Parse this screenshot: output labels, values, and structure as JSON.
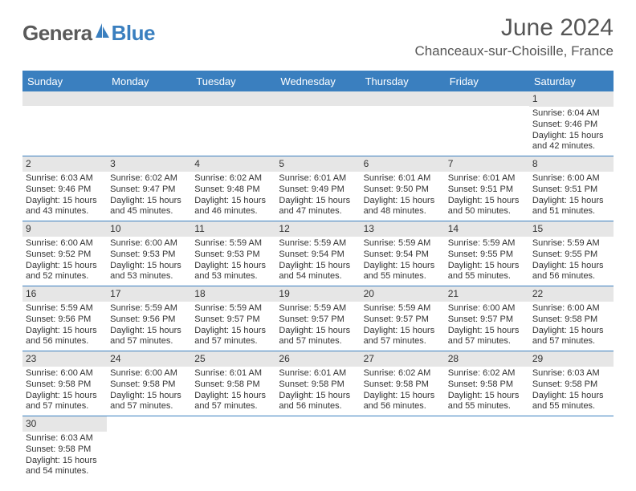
{
  "brand": {
    "text1": "Genera",
    "text2": "Blue",
    "icon_color": "#3a7fbf"
  },
  "header": {
    "month_title": "June 2024",
    "location": "Chanceaux-sur-Choisille, France"
  },
  "colors": {
    "header_bg": "#3a7fbf",
    "header_text": "#ffffff",
    "daynum_bg": "#e6e6e6",
    "border": "#3a7fbf",
    "body_text": "#333333",
    "logo_gray": "#5a5a5a"
  },
  "weekdays": [
    "Sunday",
    "Monday",
    "Tuesday",
    "Wednesday",
    "Thursday",
    "Friday",
    "Saturday"
  ],
  "weeks": [
    [
      {
        "day": "",
        "sunrise": "",
        "sunset": "",
        "daylight1": "",
        "daylight2": ""
      },
      {
        "day": "",
        "sunrise": "",
        "sunset": "",
        "daylight1": "",
        "daylight2": ""
      },
      {
        "day": "",
        "sunrise": "",
        "sunset": "",
        "daylight1": "",
        "daylight2": ""
      },
      {
        "day": "",
        "sunrise": "",
        "sunset": "",
        "daylight1": "",
        "daylight2": ""
      },
      {
        "day": "",
        "sunrise": "",
        "sunset": "",
        "daylight1": "",
        "daylight2": ""
      },
      {
        "day": "",
        "sunrise": "",
        "sunset": "",
        "daylight1": "",
        "daylight2": ""
      },
      {
        "day": "1",
        "sunrise": "Sunrise: 6:04 AM",
        "sunset": "Sunset: 9:46 PM",
        "daylight1": "Daylight: 15 hours",
        "daylight2": "and 42 minutes."
      }
    ],
    [
      {
        "day": "2",
        "sunrise": "Sunrise: 6:03 AM",
        "sunset": "Sunset: 9:46 PM",
        "daylight1": "Daylight: 15 hours",
        "daylight2": "and 43 minutes."
      },
      {
        "day": "3",
        "sunrise": "Sunrise: 6:02 AM",
        "sunset": "Sunset: 9:47 PM",
        "daylight1": "Daylight: 15 hours",
        "daylight2": "and 45 minutes."
      },
      {
        "day": "4",
        "sunrise": "Sunrise: 6:02 AM",
        "sunset": "Sunset: 9:48 PM",
        "daylight1": "Daylight: 15 hours",
        "daylight2": "and 46 minutes."
      },
      {
        "day": "5",
        "sunrise": "Sunrise: 6:01 AM",
        "sunset": "Sunset: 9:49 PM",
        "daylight1": "Daylight: 15 hours",
        "daylight2": "and 47 minutes."
      },
      {
        "day": "6",
        "sunrise": "Sunrise: 6:01 AM",
        "sunset": "Sunset: 9:50 PM",
        "daylight1": "Daylight: 15 hours",
        "daylight2": "and 48 minutes."
      },
      {
        "day": "7",
        "sunrise": "Sunrise: 6:01 AM",
        "sunset": "Sunset: 9:51 PM",
        "daylight1": "Daylight: 15 hours",
        "daylight2": "and 50 minutes."
      },
      {
        "day": "8",
        "sunrise": "Sunrise: 6:00 AM",
        "sunset": "Sunset: 9:51 PM",
        "daylight1": "Daylight: 15 hours",
        "daylight2": "and 51 minutes."
      }
    ],
    [
      {
        "day": "9",
        "sunrise": "Sunrise: 6:00 AM",
        "sunset": "Sunset: 9:52 PM",
        "daylight1": "Daylight: 15 hours",
        "daylight2": "and 52 minutes."
      },
      {
        "day": "10",
        "sunrise": "Sunrise: 6:00 AM",
        "sunset": "Sunset: 9:53 PM",
        "daylight1": "Daylight: 15 hours",
        "daylight2": "and 53 minutes."
      },
      {
        "day": "11",
        "sunrise": "Sunrise: 5:59 AM",
        "sunset": "Sunset: 9:53 PM",
        "daylight1": "Daylight: 15 hours",
        "daylight2": "and 53 minutes."
      },
      {
        "day": "12",
        "sunrise": "Sunrise: 5:59 AM",
        "sunset": "Sunset: 9:54 PM",
        "daylight1": "Daylight: 15 hours",
        "daylight2": "and 54 minutes."
      },
      {
        "day": "13",
        "sunrise": "Sunrise: 5:59 AM",
        "sunset": "Sunset: 9:54 PM",
        "daylight1": "Daylight: 15 hours",
        "daylight2": "and 55 minutes."
      },
      {
        "day": "14",
        "sunrise": "Sunrise: 5:59 AM",
        "sunset": "Sunset: 9:55 PM",
        "daylight1": "Daylight: 15 hours",
        "daylight2": "and 55 minutes."
      },
      {
        "day": "15",
        "sunrise": "Sunrise: 5:59 AM",
        "sunset": "Sunset: 9:55 PM",
        "daylight1": "Daylight: 15 hours",
        "daylight2": "and 56 minutes."
      }
    ],
    [
      {
        "day": "16",
        "sunrise": "Sunrise: 5:59 AM",
        "sunset": "Sunset: 9:56 PM",
        "daylight1": "Daylight: 15 hours",
        "daylight2": "and 56 minutes."
      },
      {
        "day": "17",
        "sunrise": "Sunrise: 5:59 AM",
        "sunset": "Sunset: 9:56 PM",
        "daylight1": "Daylight: 15 hours",
        "daylight2": "and 57 minutes."
      },
      {
        "day": "18",
        "sunrise": "Sunrise: 5:59 AM",
        "sunset": "Sunset: 9:57 PM",
        "daylight1": "Daylight: 15 hours",
        "daylight2": "and 57 minutes."
      },
      {
        "day": "19",
        "sunrise": "Sunrise: 5:59 AM",
        "sunset": "Sunset: 9:57 PM",
        "daylight1": "Daylight: 15 hours",
        "daylight2": "and 57 minutes."
      },
      {
        "day": "20",
        "sunrise": "Sunrise: 5:59 AM",
        "sunset": "Sunset: 9:57 PM",
        "daylight1": "Daylight: 15 hours",
        "daylight2": "and 57 minutes."
      },
      {
        "day": "21",
        "sunrise": "Sunrise: 6:00 AM",
        "sunset": "Sunset: 9:57 PM",
        "daylight1": "Daylight: 15 hours",
        "daylight2": "and 57 minutes."
      },
      {
        "day": "22",
        "sunrise": "Sunrise: 6:00 AM",
        "sunset": "Sunset: 9:58 PM",
        "daylight1": "Daylight: 15 hours",
        "daylight2": "and 57 minutes."
      }
    ],
    [
      {
        "day": "23",
        "sunrise": "Sunrise: 6:00 AM",
        "sunset": "Sunset: 9:58 PM",
        "daylight1": "Daylight: 15 hours",
        "daylight2": "and 57 minutes."
      },
      {
        "day": "24",
        "sunrise": "Sunrise: 6:00 AM",
        "sunset": "Sunset: 9:58 PM",
        "daylight1": "Daylight: 15 hours",
        "daylight2": "and 57 minutes."
      },
      {
        "day": "25",
        "sunrise": "Sunrise: 6:01 AM",
        "sunset": "Sunset: 9:58 PM",
        "daylight1": "Daylight: 15 hours",
        "daylight2": "and 57 minutes."
      },
      {
        "day": "26",
        "sunrise": "Sunrise: 6:01 AM",
        "sunset": "Sunset: 9:58 PM",
        "daylight1": "Daylight: 15 hours",
        "daylight2": "and 56 minutes."
      },
      {
        "day": "27",
        "sunrise": "Sunrise: 6:02 AM",
        "sunset": "Sunset: 9:58 PM",
        "daylight1": "Daylight: 15 hours",
        "daylight2": "and 56 minutes."
      },
      {
        "day": "28",
        "sunrise": "Sunrise: 6:02 AM",
        "sunset": "Sunset: 9:58 PM",
        "daylight1": "Daylight: 15 hours",
        "daylight2": "and 55 minutes."
      },
      {
        "day": "29",
        "sunrise": "Sunrise: 6:03 AM",
        "sunset": "Sunset: 9:58 PM",
        "daylight1": "Daylight: 15 hours",
        "daylight2": "and 55 minutes."
      }
    ],
    [
      {
        "day": "30",
        "sunrise": "Sunrise: 6:03 AM",
        "sunset": "Sunset: 9:58 PM",
        "daylight1": "Daylight: 15 hours",
        "daylight2": "and 54 minutes."
      },
      {
        "day": "",
        "sunrise": "",
        "sunset": "",
        "daylight1": "",
        "daylight2": ""
      },
      {
        "day": "",
        "sunrise": "",
        "sunset": "",
        "daylight1": "",
        "daylight2": ""
      },
      {
        "day": "",
        "sunrise": "",
        "sunset": "",
        "daylight1": "",
        "daylight2": ""
      },
      {
        "day": "",
        "sunrise": "",
        "sunset": "",
        "daylight1": "",
        "daylight2": ""
      },
      {
        "day": "",
        "sunrise": "",
        "sunset": "",
        "daylight1": "",
        "daylight2": ""
      },
      {
        "day": "",
        "sunrise": "",
        "sunset": "",
        "daylight1": "",
        "daylight2": ""
      }
    ]
  ]
}
